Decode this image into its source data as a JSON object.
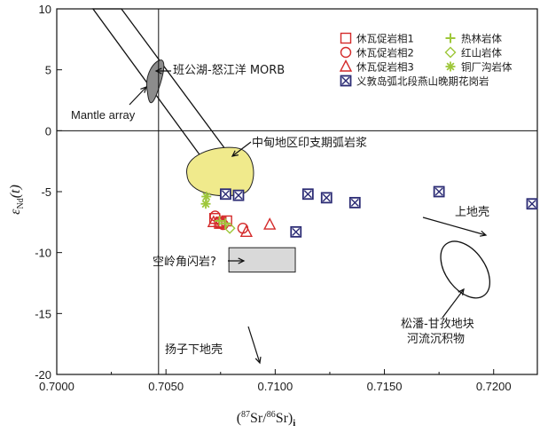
{
  "chart_data": {
    "type": "scatter",
    "xlabel": "(87Sr/86Sr)i",
    "ylabel": "εNd(t)",
    "xlim": [
      0.7,
      0.722
    ],
    "ylim": [
      -20,
      10
    ],
    "x_ticks": [
      "0.7000",
      "0.7050",
      "0.7100",
      "0.7150",
      "0.7200"
    ],
    "y_ticks": [
      "10",
      "5",
      "0",
      "-5",
      "-10",
      "-15",
      "-20"
    ],
    "grid": false,
    "legend_position": "top-right",
    "colors": {
      "red": "#d42a2a",
      "green": "#9ec73a",
      "navy": "#2b2b74",
      "shade": "#d9d9d9",
      "yellow": "#f0ea8c"
    },
    "series": [
      {
        "name": "休瓦促岩相1",
        "marker": "square",
        "color": "#d42a2a",
        "points": [
          [
            0.70723,
            -7.2
          ],
          [
            0.70752,
            -7.5
          ],
          [
            0.70745,
            -7.6
          ],
          [
            0.70778,
            -7.4
          ]
        ]
      },
      {
        "name": "休瓦促岩相2",
        "marker": "circle",
        "color": "#d42a2a",
        "points": [
          [
            0.70725,
            -7.0
          ],
          [
            0.70762,
            -7.7
          ],
          [
            0.70852,
            -8.0
          ]
        ]
      },
      {
        "name": "休瓦促岩相3",
        "marker": "triangle",
        "color": "#d42a2a",
        "points": [
          [
            0.70718,
            -7.5
          ],
          [
            0.70868,
            -8.3
          ],
          [
            0.70975,
            -7.7
          ]
        ]
      },
      {
        "name": "热林岩体",
        "marker": "plus",
        "color": "#9ec73a",
        "points": [
          [
            0.70772,
            -7.6
          ],
          [
            0.70745,
            -7.4
          ]
        ]
      },
      {
        "name": "红山岩体",
        "marker": "diamond",
        "color": "#9ec73a",
        "points": [
          [
            0.70792,
            -8.0
          ]
        ]
      },
      {
        "name": "铜厂沟岩体",
        "marker": "asterisk",
        "color": "#9ec73a",
        "points": [
          [
            0.70685,
            -5.4
          ],
          [
            0.70682,
            -6.0
          ]
        ]
      },
      {
        "name": "义敦岛弧北段燕山晚期花岗岩",
        "marker": "boxx",
        "color": "#2b2b74",
        "points": [
          [
            0.70773,
            -5.2
          ],
          [
            0.70832,
            -5.3
          ],
          [
            0.71095,
            -8.3
          ],
          [
            0.7115,
            -5.2
          ],
          [
            0.71235,
            -5.5
          ],
          [
            0.71365,
            -5.9
          ],
          [
            0.7175,
            -5.0
          ],
          [
            0.722,
            -6.0
          ]
        ]
      }
    ],
    "annotations": [
      "班公湖-怒江洋 MORB",
      "Mantle array",
      "中甸地区印支期弧岩浆",
      "空岭角闪岩?",
      "上地壳",
      "扬子下地壳",
      "松潘-甘孜地块",
      "河流沉积物"
    ]
  }
}
